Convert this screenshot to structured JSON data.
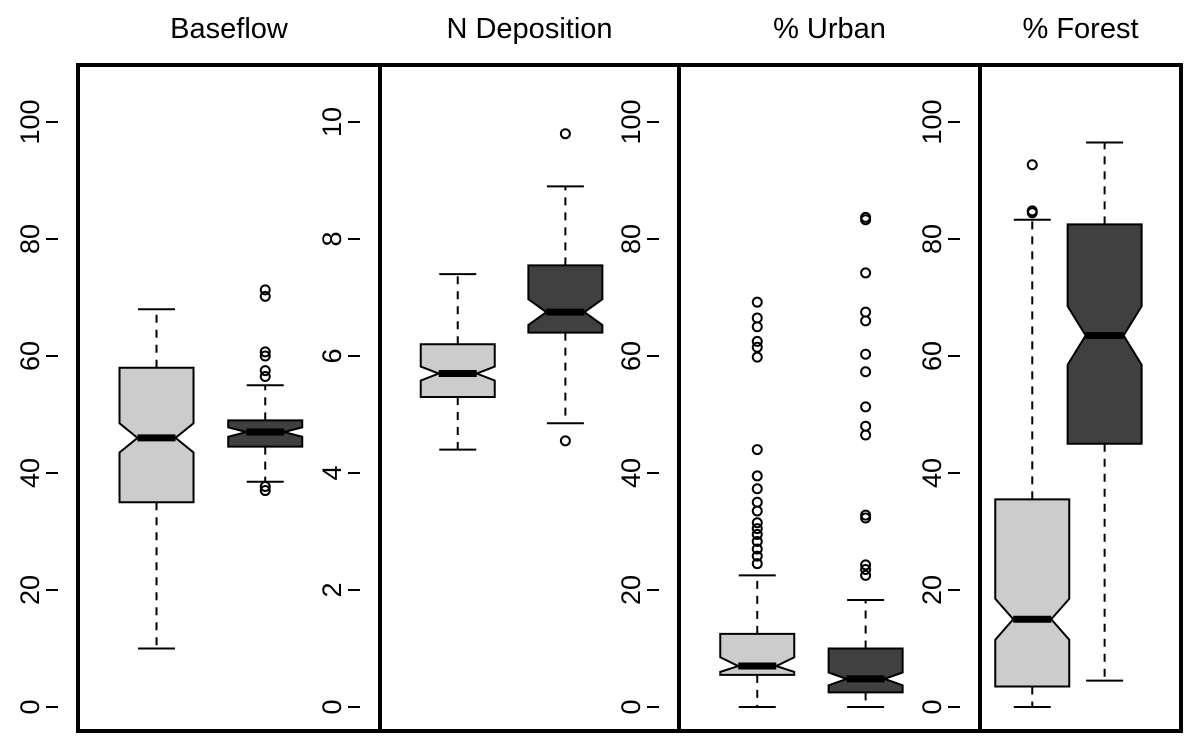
{
  "chart_data": [
    {
      "type": "boxplot",
      "title": "Baseflow",
      "ylim": [
        0,
        110
      ],
      "yticks": [
        0,
        20,
        40,
        60,
        80,
        100
      ],
      "colors": [
        "#cccccc",
        "#404040"
      ],
      "boxes": [
        {
          "whisker_low": 10,
          "q1": 35,
          "median": 46,
          "q3": 58,
          "whisker_high": 68,
          "notch_low": 43.5,
          "notch_high": 48.5,
          "outliers": []
        },
        {
          "whisker_low": 38.5,
          "q1": 44.5,
          "median": 47,
          "q3": 49,
          "whisker_high": 55,
          "notch_low": 46.2,
          "notch_high": 47.8,
          "outliers": [
            37,
            37.7,
            56.5,
            57.5,
            60,
            60.7,
            70.2,
            71.3
          ]
        }
      ]
    },
    {
      "type": "boxplot",
      "title": "N Deposition",
      "ylim": [
        0,
        11
      ],
      "yticks": [
        0,
        2,
        4,
        6,
        8,
        10
      ],
      "colors": [
        "#cccccc",
        "#404040"
      ],
      "boxes": [
        {
          "whisker_low": 4.4,
          "q1": 5.3,
          "median": 5.7,
          "q3": 6.2,
          "whisker_high": 7.4,
          "notch_low": 5.58,
          "notch_high": 5.82,
          "outliers": []
        },
        {
          "whisker_low": 4.85,
          "q1": 6.4,
          "median": 6.75,
          "q3": 7.55,
          "whisker_high": 8.9,
          "notch_low": 6.53,
          "notch_high": 6.97,
          "outliers": [
            4.55,
            9.8
          ]
        }
      ]
    },
    {
      "type": "boxplot",
      "title": "% Urban",
      "ylim": [
        0,
        110
      ],
      "yticks": [
        0,
        20,
        40,
        60,
        80,
        100
      ],
      "colors": [
        "#cccccc",
        "#404040"
      ],
      "boxes": [
        {
          "whisker_low": 0,
          "q1": 5.5,
          "median": 7,
          "q3": 12.5,
          "whisker_high": 22.5,
          "notch_low": 6,
          "notch_high": 8.5,
          "outliers": [
            24.5,
            25.8,
            27,
            28.3,
            29.5,
            30.5,
            31.5,
            33.5,
            35,
            37.3,
            39.5,
            44,
            59.8,
            61.5,
            62.5,
            65,
            66.5,
            69.2
          ]
        },
        {
          "whisker_low": 0,
          "q1": 2.5,
          "median": 4.8,
          "q3": 10,
          "whisker_high": 18.3,
          "notch_low": 3.7,
          "notch_high": 5.9,
          "outliers": [
            22.5,
            23.5,
            24.3,
            32.3,
            32.8,
            46.5,
            48,
            51.3,
            57.3,
            60.3,
            66,
            67.5,
            74.2,
            83.3,
            83.7
          ]
        }
      ]
    },
    {
      "type": "boxplot",
      "title": "% Forest",
      "ylim": [
        0,
        110
      ],
      "yticks": [
        0,
        20,
        40,
        60,
        80,
        100
      ],
      "colors": [
        "#cccccc",
        "#404040"
      ],
      "boxes": [
        {
          "whisker_low": 0,
          "q1": 3.5,
          "median": 15,
          "q3": 35.5,
          "whisker_high": 83.3,
          "notch_low": 11.5,
          "notch_high": 18.5,
          "outliers": [
            84.5,
            84.8,
            92.7
          ]
        },
        {
          "whisker_low": 4.5,
          "q1": 45,
          "median": 63.5,
          "q3": 82.5,
          "whisker_high": 96.5,
          "notch_low": 58.5,
          "notch_high": 68.5,
          "outliers": []
        }
      ]
    }
  ]
}
